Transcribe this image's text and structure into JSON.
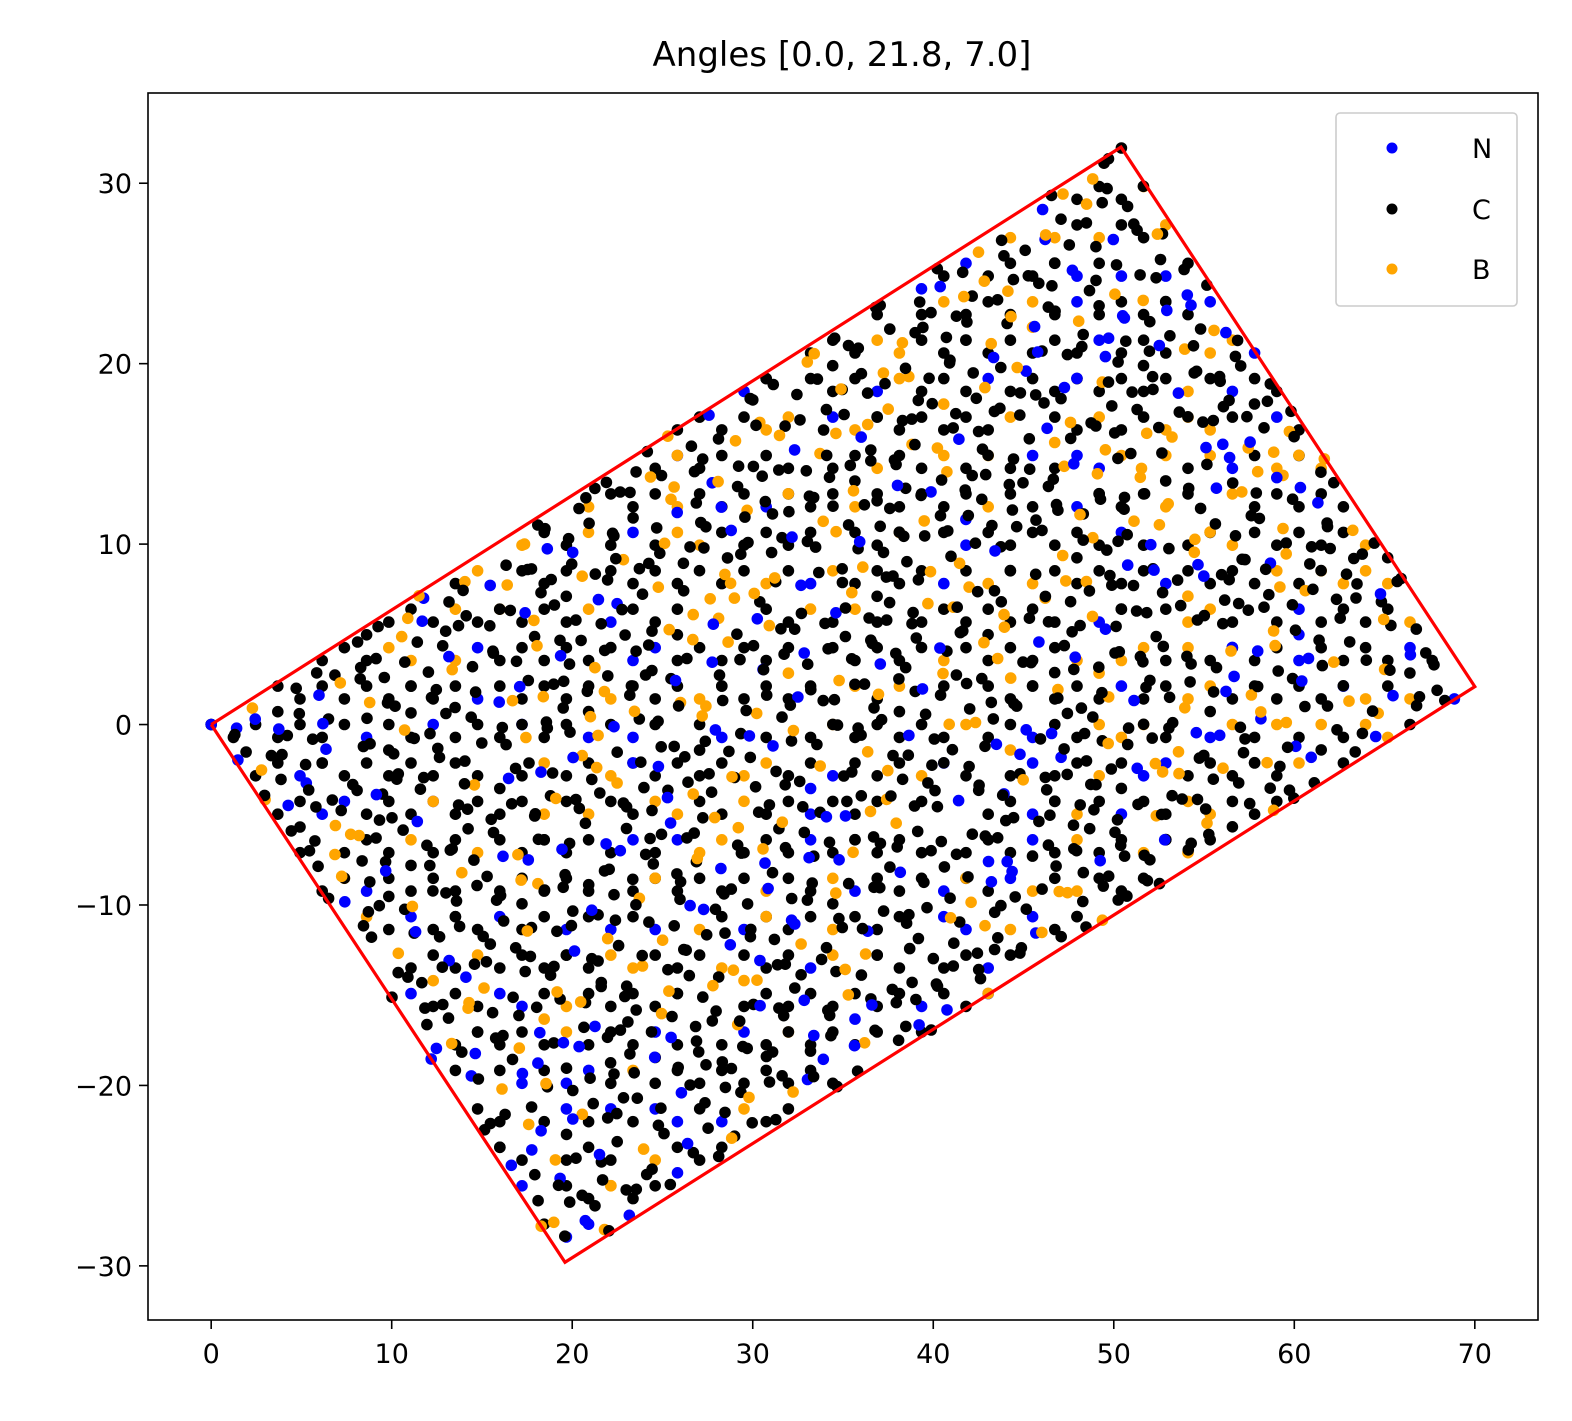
{
  "chart_data": {
    "type": "scatter",
    "title": "Angles [0.0, 21.8, 7.0]",
    "xlabel": "",
    "ylabel": "",
    "xlim": [
      -3.5,
      73.5
    ],
    "ylim": [
      -33,
      35
    ],
    "x_ticks": [
      0,
      10,
      20,
      30,
      40,
      50,
      60,
      70
    ],
    "y_ticks": [
      -30,
      -20,
      -10,
      0,
      10,
      20,
      30
    ],
    "x_tick_labels": [
      "0",
      "10",
      "20",
      "30",
      "40",
      "50",
      "60",
      "70"
    ],
    "y_tick_labels": [
      "−30",
      "−20",
      "−10",
      "0",
      "10",
      "20",
      "30"
    ],
    "grid": false,
    "legend_position": "top-right",
    "boundary": {
      "color": "#ff0000",
      "vertices": [
        [
          0,
          0
        ],
        [
          50.4,
          32.0
        ],
        [
          70.0,
          2.1
        ],
        [
          19.6,
          -29.8
        ],
        [
          0,
          0
        ]
      ]
    },
    "lattice": {
      "rotation_angles_deg": [
        0.0,
        21.8,
        7.0
      ],
      "lattice_constant": 1.42,
      "dot_count_approx": 2200
    },
    "series": [
      {
        "name": "N",
        "color": "#0000ff"
      },
      {
        "name": "C",
        "color": "#000000"
      },
      {
        "name": "B",
        "color": "#ffa500"
      }
    ]
  }
}
